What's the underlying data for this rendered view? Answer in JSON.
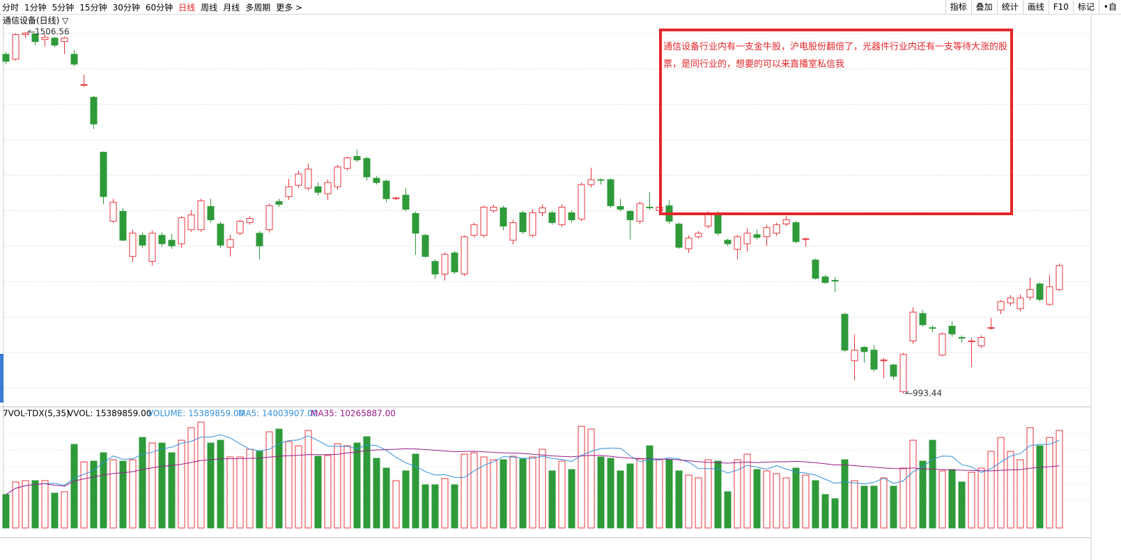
{
  "toolbar": {
    "tabs": [
      "分时",
      "1分钟",
      "5分钟",
      "15分钟",
      "30分钟",
      "60分钟",
      "日线",
      "周线",
      "月线",
      "多周期",
      "更多 >"
    ],
    "active_tab": "日线",
    "tools": [
      "指标",
      "叠加",
      "统计",
      "画线",
      "F10",
      "标记",
      "•自"
    ]
  },
  "chart_data": {
    "type": "candlestick",
    "title": "通信设备(日线) ▽",
    "annotation": "通信设备行业内有一支金牛股，沪电股份翻倍了，光器件行业内还有一支等待大涨的股票，是同行业的，想要的可以来直播室私信我",
    "up_color": "#e8333a",
    "down_color": "#2e9a39",
    "ylim": [
      975.6,
      1530.3
    ],
    "open": [
      1475,
      1468,
      1503,
      1504,
      1496,
      1498,
      1493,
      1475,
      1431,
      1414,
      1336,
      1238,
      1252,
      1188,
      1218,
      1181,
      1218,
      1211,
      1206,
      1226,
      1226,
      1259,
      1234,
      1201,
      1221,
      1236,
      1221,
      1226,
      1266,
      1273,
      1289,
      1285,
      1287,
      1277,
      1287,
      1313,
      1330,
      1327,
      1299,
      1295,
      1270,
      1275,
      1249,
      1218,
      1181,
      1163,
      1193,
      1163,
      1218,
      1218,
      1253,
      1257,
      1211,
      1250,
      1218,
      1250,
      1250,
      1233,
      1250,
      1241,
      1290,
      1297,
      1297,
      1259,
      1252,
      1238,
      1258,
      1253,
      1260,
      1234,
      1199,
      1216,
      1231,
      1250,
      1211,
      1198,
      1206,
      1219,
      1216,
      1221,
      1234,
      1236,
      1212,
      1183,
      1159,
      1154,
      1106,
      1040,
      1059,
      1055,
      1040,
      1034,
      996,
      1068,
      1107,
      1087,
      1048,
      1089,
      1073,
      1067,
      1061,
      1086,
      1112,
      1122,
      1114,
      1130,
      1149,
      1120,
      1141
    ],
    "high": [
      1478,
      1505,
      1506.56,
      1505,
      1504,
      1500,
      1500,
      1481,
      1446,
      1416,
      1337,
      1270,
      1257,
      1226,
      1222,
      1225,
      1222,
      1220,
      1245,
      1254,
      1270,
      1270,
      1237,
      1219,
      1240,
      1245,
      1224,
      1263,
      1270,
      1298,
      1310,
      1320,
      1293,
      1297,
      1318,
      1330,
      1340,
      1330,
      1302,
      1297,
      1273,
      1285,
      1252,
      1220,
      1184,
      1194,
      1196,
      1218,
      1236,
      1260,
      1262,
      1260,
      1240,
      1253,
      1255,
      1262,
      1253,
      1262,
      1253,
      1293,
      1314,
      1299,
      1299,
      1270,
      1254,
      1266,
      1279,
      1272,
      1268,
      1236,
      1218,
      1224,
      1252,
      1252,
      1213,
      1219,
      1228,
      1226,
      1233,
      1236,
      1245,
      1238,
      1215,
      1185,
      1162,
      1159,
      1108,
      1077,
      1061,
      1062,
      1044,
      1036,
      1051,
      1116,
      1112,
      1090,
      1080,
      1096,
      1076,
      1072,
      1076,
      1101,
      1126,
      1133,
      1134,
      1158,
      1151,
      1162,
      1178
    ],
    "low": [
      1461,
      1466,
      1498,
      1488,
      1486,
      1485,
      1475,
      1458,
      1429,
      1369,
      1262,
      1236,
      1210,
      1180,
      1200,
      1175,
      1202,
      1199,
      1200,
      1223,
      1223,
      1236,
      1200,
      1188,
      1218,
      1233,
      1184,
      1222,
      1258,
      1268,
      1285,
      1282,
      1275,
      1268,
      1283,
      1310,
      1322,
      1296,
      1290,
      1265,
      1268,
      1252,
      1190,
      1186,
      1156,
      1154,
      1163,
      1160,
      1215,
      1215,
      1250,
      1225,
      1205,
      1220,
      1215,
      1245,
      1233,
      1230,
      1236,
      1238,
      1286,
      1290,
      1257,
      1252,
      1212,
      1234,
      1254,
      1250,
      1234,
      1199,
      1193,
      1213,
      1228,
      1218,
      1203,
      1184,
      1195,
      1212,
      1203,
      1217,
      1231,
      1207,
      1202,
      1155,
      1149,
      1137,
      1053,
      1012,
      1037,
      1025,
      1015,
      1013,
      993.44,
      1064,
      1088,
      1080,
      1046,
      1074,
      1066,
      1031,
      1058,
      1084,
      1106,
      1118,
      1110,
      1126,
      1124,
      1118,
      1139
    ],
    "close": [
      1465,
      1503,
      1505,
      1493,
      1499,
      1488,
      1498,
      1461,
      1432,
      1376,
      1273,
      1265,
      1211,
      1221,
      1204,
      1221,
      1206,
      1203,
      1243,
      1247,
      1267,
      1240,
      1204,
      1212,
      1238,
      1242,
      1203,
      1260,
      1262,
      1287,
      1305,
      1312,
      1279,
      1293,
      1315,
      1328,
      1325,
      1301,
      1293,
      1270,
      1271,
      1255,
      1221,
      1188,
      1163,
      1191,
      1166,
      1216,
      1233,
      1258,
      1258,
      1231,
      1236,
      1223,
      1250,
      1257,
      1236,
      1258,
      1240,
      1290,
      1297,
      1296,
      1260,
      1255,
      1240,
      1263,
      1257,
      1258,
      1238,
      1201,
      1214,
      1221,
      1248,
      1221,
      1206,
      1216,
      1221,
      1215,
      1229,
      1233,
      1240,
      1209,
      1213,
      1157,
      1151,
      1153,
      1055,
      1055,
      1053,
      1028,
      1041,
      1018,
      1049,
      1109,
      1091,
      1086,
      1078,
      1078,
      1072,
      1068,
      1073,
      1087,
      1124,
      1129,
      1129,
      1141,
      1127,
      1145,
      1175
    ],
    "volume": [
      5280000,
      7260000,
      7470000,
      7470000,
      7470000,
      5500000,
      5720000,
      13190000,
      10440000,
      10550000,
      11870000,
      10770000,
      10550000,
      10770000,
      14290000,
      13410000,
      13410000,
      11870000,
      13850000,
      15830000,
      16710000,
      13410000,
      13850000,
      11210000,
      11210000,
      12420000,
      12090000,
      15170000,
      15610000,
      13630000,
      12970000,
      15390000,
      11320000,
      11430000,
      13300000,
      12970000,
      13410000,
      14400000,
      10990000,
      9450000,
      7470000,
      9010000,
      11650000,
      6820000,
      6820000,
      7800000,
      6820000,
      11650000,
      11870000,
      11210000,
      10770000,
      10770000,
      11320000,
      10880000,
      11210000,
      12420000,
      9010000,
      10550000,
      9230000,
      16050000,
      15610000,
      11210000,
      10990000,
      9010000,
      10110000,
      10880000,
      12970000,
      10770000,
      10770000,
      9010000,
      8350000,
      7910000,
      10770000,
      10550000,
      5720000,
      10770000,
      11650000,
      9230000,
      9010000,
      8570000,
      7910000,
      9450000,
      8350000,
      7470000,
      5280000,
      4620000,
      10770000,
      7470000,
      6600000,
      6600000,
      7910000,
      6600000,
      9450000,
      13850000,
      10550000,
      13850000,
      9010000,
      9230000,
      7260000,
      8790000,
      9450000,
      12090000,
      14290000,
      12090000,
      10770000,
      15830000,
      12970000,
      14290000,
      15389859
    ],
    "volume_ylim": [
      0,
      17370000
    ],
    "indicator": {
      "name": "7VOL-TDX(5,35)",
      "vvol": "VVOL: 15389859.00",
      "volume": "VOLUME: 15389859.00",
      "ma5": "MA5: 14003907.00",
      "ma35": "MA35: 10265887.00",
      "ma5_color": "#2f8fdc",
      "ma35_color": "#9a1a8c",
      "volume_color": "#2f8fdc"
    }
  }
}
